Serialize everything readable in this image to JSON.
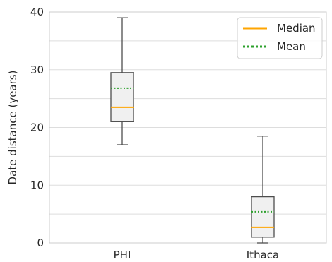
{
  "chart_data": {
    "type": "box",
    "title": "",
    "xlabel": "",
    "ylabel": "Date distance (years)",
    "ylim": [
      0,
      40
    ],
    "yticks": [
      0,
      10,
      20,
      30,
      40
    ],
    "grid": "horizontal",
    "legend": {
      "placement": "top-right",
      "entries": [
        {
          "label": "Median",
          "style": "solid",
          "color": "#ffa500"
        },
        {
          "label": "Mean",
          "style": "dotted",
          "color": "#2ca02c"
        }
      ]
    },
    "categories": [
      "PHI",
      "Ithaca"
    ],
    "boxes": [
      {
        "category": "PHI",
        "whisker_low": 17,
        "q1": 21,
        "median": 23.5,
        "mean": 26.8,
        "q3": 29.5,
        "whisker_high": 39
      },
      {
        "category": "Ithaca",
        "whisker_low": 0,
        "q1": 1,
        "median": 2.7,
        "mean": 5.4,
        "q3": 8,
        "whisker_high": 18.5
      }
    ],
    "colors": {
      "box_fill": "#f0f0f0",
      "box_edge": "#4d4d4d",
      "median": "#ffa500",
      "mean": "#2ca02c",
      "grid": "#dddddd",
      "frame": "#cccccc"
    }
  }
}
